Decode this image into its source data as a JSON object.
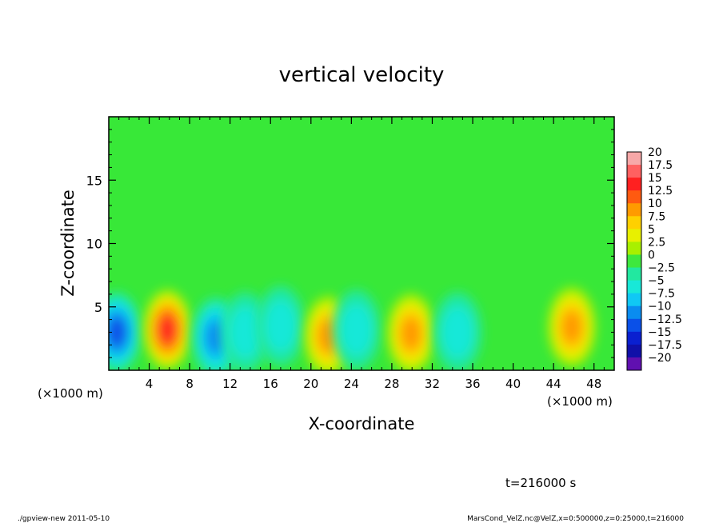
{
  "chart_data": {
    "type": "heatmap",
    "title": "vertical velocity",
    "xlabel": "X-coordinate",
    "ylabel": "Z-coordinate",
    "x_unit_note": "(×1000 m)",
    "x_unit_note_right": "(×1000 m)",
    "xlim": [
      0,
      50
    ],
    "ylim": [
      0,
      20
    ],
    "x_ticks": [
      "4",
      "8",
      "12",
      "16",
      "20",
      "24",
      "28",
      "32",
      "36",
      "40",
      "44",
      "48"
    ],
    "y_ticks": [
      "5",
      "10",
      "15"
    ],
    "x_tick_values": [
      4,
      8,
      12,
      16,
      20,
      24,
      28,
      32,
      36,
      40,
      44,
      48
    ],
    "y_tick_values": [
      5,
      10,
      15
    ],
    "background_value": 0,
    "features": [
      {
        "x": 0.8,
        "z": 3.0,
        "value": -12
      },
      {
        "x": 5.8,
        "z": 3.2,
        "value": 14
      },
      {
        "x": 10.6,
        "z": 2.6,
        "value": -9
      },
      {
        "x": 13.5,
        "z": 3.0,
        "value": -4
      },
      {
        "x": 17.0,
        "z": 3.5,
        "value": -4
      },
      {
        "x": 21.7,
        "z": 2.7,
        "value": 9
      },
      {
        "x": 24.5,
        "z": 3.2,
        "value": -4
      },
      {
        "x": 29.9,
        "z": 2.9,
        "value": 9
      },
      {
        "x": 34.5,
        "z": 3.0,
        "value": -4
      },
      {
        "x": 45.8,
        "z": 3.4,
        "value": 9
      }
    ],
    "colorbar": {
      "levels": [
        "20",
        "17.5",
        "15",
        "12.5",
        "10",
        "7.5",
        "5",
        "2.5",
        "0",
        "−2.5",
        "−5",
        "−7.5",
        "−10",
        "−12.5",
        "−15",
        "−17.5",
        "−20"
      ],
      "colors": [
        "#f7a8a8",
        "#ff6060",
        "#ff2020",
        "#ff5a10",
        "#ff9a00",
        "#ffd000",
        "#e8f000",
        "#a8f000",
        "#3ee83e",
        "#22e8a0",
        "#18e8d8",
        "#10c8f4",
        "#0a8cf0",
        "#0a50e8",
        "#0a20d0",
        "#1010a8",
        "#6010b0"
      ]
    }
  },
  "time_label": "t=216000 s",
  "footer_left": "./gpview-new  2011-05-10",
  "footer_right": "MarsCond_VelZ.nc@VelZ,x=0:500000,z=0:25000,t=216000"
}
